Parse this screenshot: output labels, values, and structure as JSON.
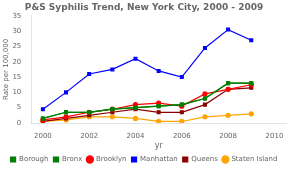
{
  "chart_data": {
    "type": "line",
    "title": "P&S Syphilis Trend, New York City, 2000 - 2009",
    "x_label": "yr",
    "y_label": "Rate per 100,000",
    "x": [
      2000,
      2001,
      2002,
      2003,
      2004,
      2005,
      2006,
      2007,
      2008,
      2009
    ],
    "xlim": [
      1999.5,
      2010.5
    ],
    "xticks": [
      2000,
      2002,
      2004,
      2006,
      2008,
      2010
    ],
    "ylim": [
      0,
      35
    ],
    "yticks": [
      0,
      5,
      10,
      15,
      20,
      25,
      30,
      35
    ],
    "grid": false,
    "legend": "bottom",
    "series": [
      {
        "name": "Borough",
        "color": "#008000",
        "marker": "square",
        "values": [
          1.5,
          3.5,
          3.5,
          4.5,
          5.0,
          5.5,
          6.0,
          8.0,
          13.0,
          13.0
        ]
      },
      {
        "name": "Bronx",
        "color": "#008000",
        "marker": "square",
        "values": [
          1.5,
          3.5,
          3.5,
          4.5,
          5.0,
          5.5,
          6.0,
          8.0,
          13.0,
          13.0
        ]
      },
      {
        "name": "Brooklyn",
        "color": "#ff0000",
        "marker": "circle",
        "values": [
          1.0,
          2.0,
          3.5,
          4.5,
          6.0,
          6.5,
          5.5,
          9.5,
          11.0,
          12.5
        ]
      },
      {
        "name": "Manhattan",
        "color": "#0000ff",
        "marker": "square",
        "values": [
          4.5,
          10.0,
          16.0,
          17.5,
          21.0,
          17.0,
          15.0,
          24.5,
          30.5,
          27.0
        ]
      },
      {
        "name": "Queens",
        "color": "#8b0000",
        "marker": "square",
        "values": [
          0.5,
          1.5,
          2.5,
          3.5,
          4.5,
          3.5,
          3.5,
          6.0,
          11.0,
          11.5
        ]
      },
      {
        "name": "Staten Island",
        "color": "#ffa500",
        "marker": "circle",
        "values": [
          0.5,
          1.0,
          2.0,
          2.0,
          1.5,
          0.5,
          0.5,
          2.0,
          2.5,
          3.0
        ]
      }
    ]
  }
}
